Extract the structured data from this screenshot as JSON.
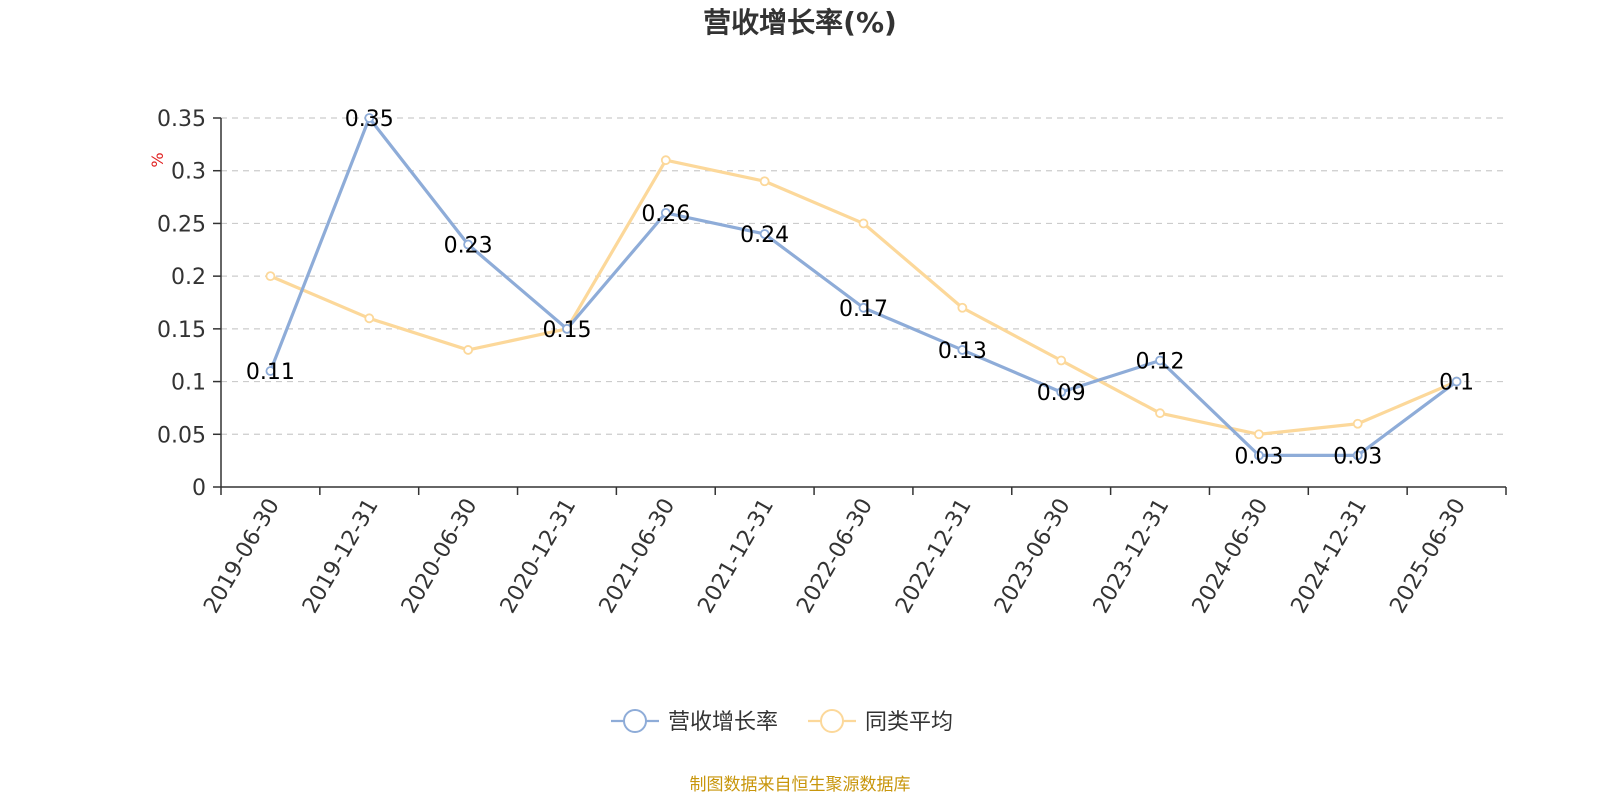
{
  "colors": {
    "series_main": "#8eacd8",
    "series_avg": "#fcd89a",
    "grid": "#cccccc",
    "axis": "#333333",
    "unit": "#e02020",
    "source": "#c8960c"
  },
  "source_note": "制图数据来自恒生聚源数据库",
  "chart_data": {
    "type": "line",
    "title": "营收增长率(%)",
    "ylabel": "%",
    "xlabel": "",
    "ylim": [
      0,
      0.35
    ],
    "yticks": [
      0,
      0.05,
      0.1,
      0.15,
      0.2,
      0.25,
      0.3,
      0.35
    ],
    "ytick_labels": [
      "0",
      "0.05",
      "0.1",
      "0.15",
      "0.2",
      "0.25",
      "0.3",
      "0.35"
    ],
    "grid": true,
    "legend_position": "bottom-center",
    "categories": [
      "2019-06-30",
      "2019-12-31",
      "2020-06-30",
      "2020-12-31",
      "2021-06-30",
      "2021-12-31",
      "2022-06-30",
      "2022-12-31",
      "2023-06-30",
      "2023-12-31",
      "2024-06-30",
      "2024-12-31",
      "2025-06-30"
    ],
    "series": [
      {
        "name": "营收增长率",
        "values": [
          0.11,
          0.35,
          0.23,
          0.15,
          0.26,
          0.24,
          0.17,
          0.13,
          0.09,
          0.12,
          0.03,
          0.03,
          0.1
        ],
        "labels": [
          "0.11",
          "0.35",
          "0.23",
          "0.15",
          "0.26",
          "0.24",
          "0.17",
          "0.13",
          "0.09",
          "0.12",
          "0.03",
          "0.03",
          "0.1"
        ],
        "show_labels": true
      },
      {
        "name": "同类平均",
        "values": [
          0.2,
          0.16,
          0.13,
          0.15,
          0.31,
          0.29,
          0.25,
          0.17,
          0.12,
          0.07,
          0.05,
          0.06,
          0.1
        ],
        "show_labels": false
      }
    ]
  }
}
